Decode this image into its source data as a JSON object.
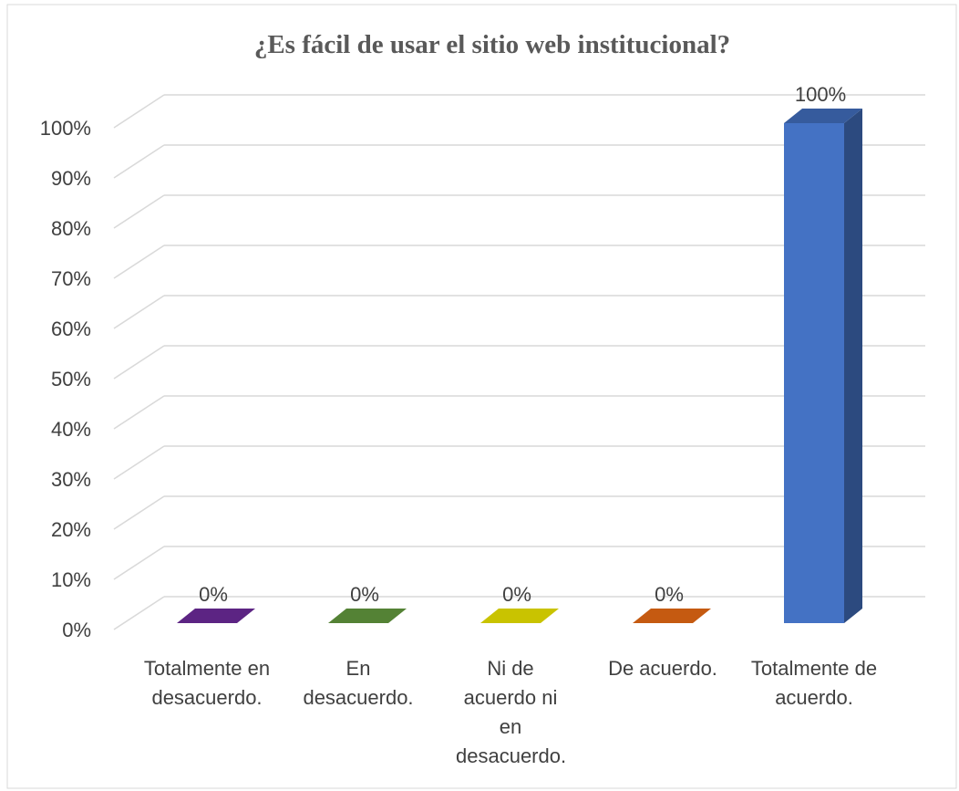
{
  "chart_data": {
    "type": "bar3d",
    "title": "¿Es fácil de usar el sitio web institucional?",
    "categories": [
      "Totalmente en desacuerdo.",
      "En desacuerdo.",
      "Ni de acuerdo ni en desacuerdo.",
      "De acuerdo.",
      "Totalmente de acuerdo."
    ],
    "values": [
      0,
      0,
      0,
      0,
      100
    ],
    "value_labels": [
      "0%",
      "0%",
      "0%",
      "0%",
      "100%"
    ],
    "colors": [
      "#5c2483",
      "#548235",
      "#c9c300",
      "#c55a11",
      "#4472c4"
    ],
    "ylim": [
      0,
      100
    ],
    "yticks": [
      {
        "value": 0,
        "label": "0%"
      },
      {
        "value": 10,
        "label": "10%"
      },
      {
        "value": 20,
        "label": "20%"
      },
      {
        "value": 30,
        "label": "30%"
      },
      {
        "value": 40,
        "label": "40%"
      },
      {
        "value": 50,
        "label": "50%"
      },
      {
        "value": 60,
        "label": "60%"
      },
      {
        "value": 70,
        "label": "70%"
      },
      {
        "value": 80,
        "label": "80%"
      },
      {
        "value": 90,
        "label": "90%"
      },
      {
        "value": 100,
        "label": "100%"
      }
    ],
    "grid": true
  }
}
